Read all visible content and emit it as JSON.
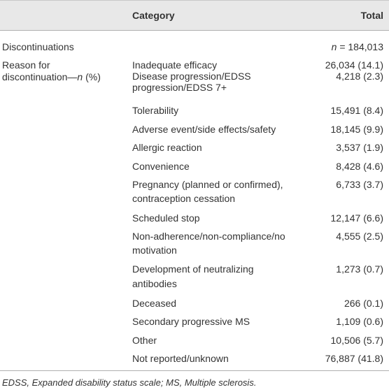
{
  "table": {
    "header": [
      "Category",
      "Total"
    ],
    "discontinuations": {
      "label": "Discontinuations",
      "total_italic": "n",
      "total_rest": " = 184,013"
    },
    "reason_label": {
      "first_line": "Reason for",
      "second_line": "discontinuation—",
      "italic": "n",
      "suffix": " (%)"
    },
    "rows": [
      {
        "category": [
          "Inadequate efficacy"
        ],
        "total": "26,034 (14.1)"
      },
      {
        "category": [
          "Disease progression/EDSS",
          "progression/EDSS 7+"
        ],
        "total": "4,218 (2.3)"
      },
      {
        "category": [
          "Tolerability"
        ],
        "total": "15,491 (8.4)"
      },
      {
        "category": [
          "Adverse event/side effects/safety"
        ],
        "total": "18,145 (9.9)"
      },
      {
        "category": [
          "Allergic reaction"
        ],
        "total": "3,537 (1.9)"
      },
      {
        "category": [
          "Convenience"
        ],
        "total": "8,428 (4.6)"
      },
      {
        "category": [
          "Pregnancy (planned or confirmed),",
          "contraception cessation"
        ],
        "total": "6,733 (3.7)"
      },
      {
        "category": [
          "Scheduled stop"
        ],
        "total": "12,147 (6.6)"
      },
      {
        "category": [
          "Non-adherence/non-compliance/no",
          "motivation"
        ],
        "total": "4,555 (2.5)"
      },
      {
        "category": [
          "Development of neutralizing",
          "antibodies"
        ],
        "total": "1,273 (0.7)"
      },
      {
        "category": [
          "Deceased"
        ],
        "total": "266 (0.1)"
      },
      {
        "category": [
          "Secondary progressive MS"
        ],
        "total": "1,109 (0.6)"
      },
      {
        "category": [
          "Other"
        ],
        "total": "10,506 (5.7)"
      },
      {
        "category": [
          "Not reported/unknown"
        ],
        "total": "76,887 (41.8)"
      }
    ],
    "footnote": "EDSS, Expanded disability status scale; MS, Multiple sclerosis."
  }
}
